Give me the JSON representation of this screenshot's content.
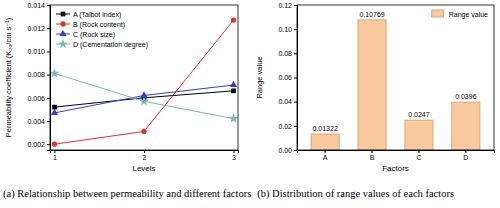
{
  "chart_data": [
    {
      "type": "line",
      "title": "(a) Relationship between permeability and different factors",
      "x_label": "Levels",
      "y_label": "Permeability coefficient (K₂₀/cm s⁻¹)",
      "x": [
        1,
        2,
        3
      ],
      "series": [
        {
          "name": "A (Talbot index)",
          "color": "#000000",
          "marker": "square",
          "values": [
            0.0052,
            0.006,
            0.0066
          ]
        },
        {
          "name": "B (Rock content)",
          "color": "#e8312a",
          "marker": "circle",
          "values": [
            0.002,
            0.0031,
            0.0127
          ]
        },
        {
          "name": "C (Rock size)",
          "color": "#2a3fd6",
          "marker": "triangle",
          "values": [
            0.0047,
            0.0062,
            0.0071
          ]
        },
        {
          "name": "D (Cementation degree)",
          "color": "#6dbdb0",
          "marker": "star",
          "values": [
            0.0081,
            0.0057,
            0.0042
          ]
        }
      ],
      "xlim": [
        0.95,
        3.05
      ],
      "xticks": [
        1,
        2,
        3
      ],
      "ylim": [
        0.0015,
        0.014
      ],
      "yticks": [
        0.002,
        0.004,
        0.006,
        0.008,
        {
          "value": 0.01,
          "label": "0.010"
        },
        0.012,
        0.014
      ],
      "legend": "upper left",
      "grid": false
    },
    {
      "type": "bar",
      "title": "(b) Distribution of range values of each factors",
      "x_label": "Factors",
      "y_label": "Range value",
      "categories": [
        "A",
        "B",
        "C",
        "D"
      ],
      "series": [
        {
          "name": "Range value",
          "color": "#f8c99c",
          "values": [
            0.01322,
            0.10769,
            0.0247,
            0.0396
          ]
        }
      ],
      "ylim": [
        0,
        0.12
      ],
      "yticks": [
        {
          "value": 0,
          "label": "0.00"
        },
        0.02,
        0.04,
        0.06,
        0.08,
        {
          "value": 0.1,
          "label": "0.10"
        },
        0.12
      ],
      "data_labels": true,
      "legend": "upper right",
      "grid": false
    }
  ]
}
